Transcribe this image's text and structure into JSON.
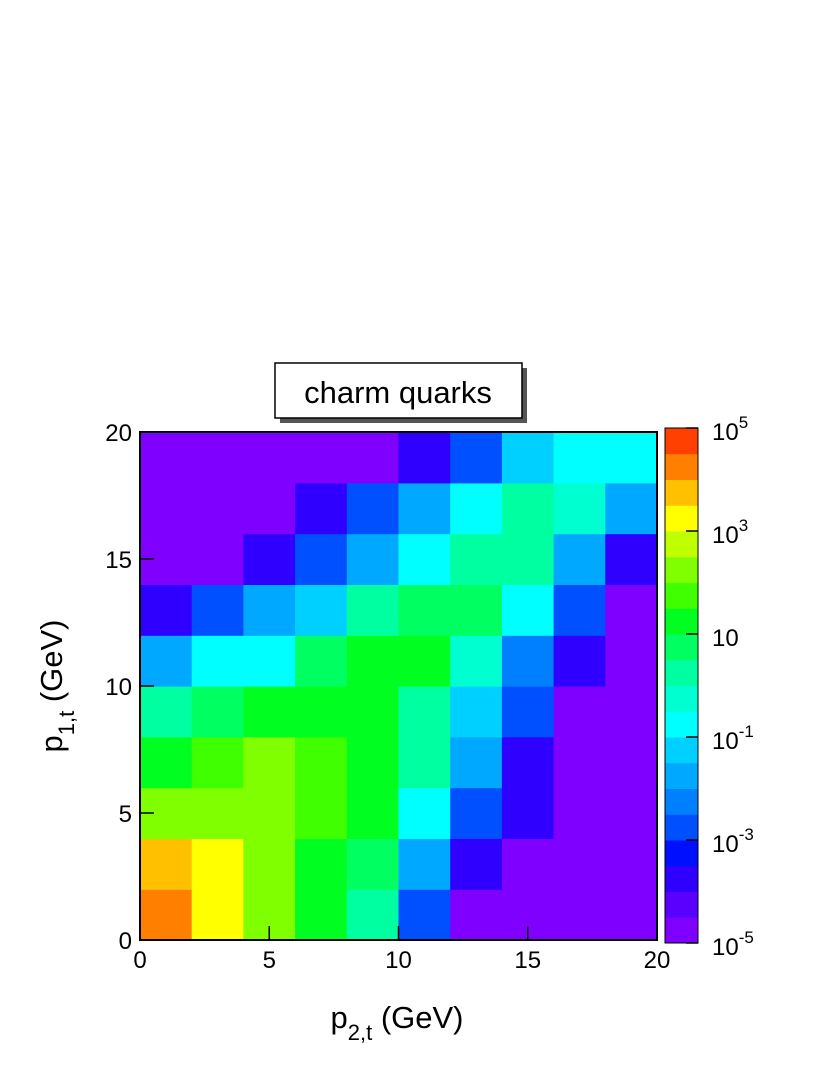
{
  "chart_data": {
    "type": "contour",
    "title": "charm quarks",
    "x_label": {
      "symbol": "p",
      "subscript": "2,t",
      "unit": "(GeV)"
    },
    "y_label": {
      "symbol": "p",
      "subscript": "1,t",
      "unit": "(GeV)"
    },
    "xlim": [
      0,
      20
    ],
    "ylim": [
      0,
      20
    ],
    "xticks": [
      0,
      5,
      10,
      15,
      20
    ],
    "yticks": [
      0,
      5,
      10,
      15,
      20
    ],
    "x_bins": [
      0,
      2,
      4,
      6,
      8,
      10,
      12,
      14,
      16,
      18,
      20
    ],
    "y_bins": [
      0,
      2,
      4,
      6,
      8,
      10,
      12,
      14,
      16,
      18,
      20
    ],
    "z": [
      [
        16000,
        2000,
        160,
        20,
        1,
        0.003,
        3e-05,
        1e-05,
        1e-05,
        1e-05
      ],
      [
        5000,
        2000,
        200,
        30,
        5,
        0.03,
        0.0003,
        1e-05,
        1e-05,
        1e-05
      ],
      [
        300,
        300,
        160,
        50,
        10,
        0.3,
        0.003,
        0.0001,
        1e-05,
        1e-05
      ],
      [
        16,
        60,
        100,
        60,
        20,
        1,
        0.01,
        0.0003,
        1e-05,
        1e-05
      ],
      [
        1,
        6,
        20,
        30,
        20,
        3,
        0.05,
        0.001,
        3e-05,
        1e-05
      ],
      [
        0.03,
        0.1,
        0.3,
        5,
        16,
        10,
        0.5,
        0.006,
        0.00016,
        1e-05
      ],
      [
        0.0003,
        0.001,
        0.01,
        0.05,
        1,
        6,
        4,
        0.1,
        0.001,
        3e-05
      ],
      [
        1e-05,
        3e-05,
        0.0003,
        0.003,
        0.03,
        0.3,
        2.5,
        2,
        0.03,
        0.0003
      ],
      [
        1e-05,
        1e-05,
        1e-05,
        0.0001,
        0.001,
        0.01,
        0.1,
        1,
        0.6,
        0.01
      ],
      [
        1e-05,
        1e-05,
        1e-05,
        1e-05,
        1e-05,
        0.0003,
        0.003,
        0.06,
        0.3,
        0.1
      ]
    ],
    "zlim": [
      1e-05,
      100000
    ],
    "log_z": true,
    "colors": [
      "#7f00ff",
      "#5a00ff",
      "#3000ff",
      "#0010ff",
      "#0050ff",
      "#0080ff",
      "#00a8ff",
      "#00d0ff",
      "#00ffff",
      "#00ffd0",
      "#00ffa0",
      "#00ff60",
      "#00ff20",
      "#40ff00",
      "#80ff00",
      "#c0ff00",
      "#ffff00",
      "#ffc000",
      "#ff8000",
      "#ff4000"
    ],
    "zticks": [
      {
        "value": 1e-05,
        "label": "10",
        "exponent": "-5"
      },
      {
        "value": 0.001,
        "label": "10",
        "exponent": "-3"
      },
      {
        "value": 0.1,
        "label": "10",
        "exponent": "-1"
      },
      10,
      {
        "value": 1000,
        "label": "10",
        "exponent": "3"
      },
      {
        "value": 100000,
        "label": "10",
        "exponent": "5"
      }
    ]
  }
}
